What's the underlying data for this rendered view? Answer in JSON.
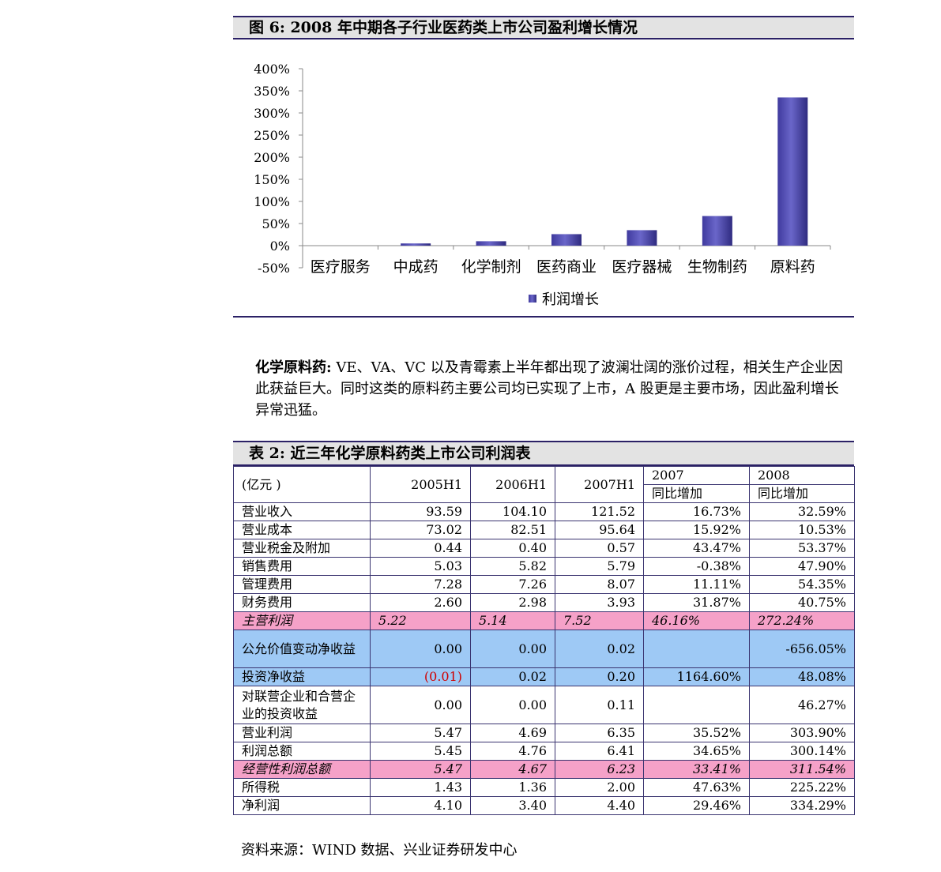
{
  "figure": {
    "title": "图 6:  2008 年中期各子行业医药类上市公司盈利增长情况"
  },
  "chart_data": {
    "type": "bar",
    "categories": [
      "医疗服务",
      "中成药",
      "化学制剂",
      "医药商业",
      "医疗器械",
      "生物制药",
      "原料药"
    ],
    "series": [
      {
        "name": "利润增长",
        "values": [
          0,
          5,
          10,
          26,
          35,
          67,
          335
        ]
      }
    ],
    "y_ticks": [
      "400%",
      "350%",
      "300%",
      "250%",
      "200%",
      "150%",
      "100%",
      "50%",
      "0%",
      "-50%"
    ],
    "ylim": [
      -50,
      400
    ],
    "grid": false,
    "legend": "bottom-center",
    "bar_color": "#6a66c9"
  },
  "paragraph": {
    "lead": "化学原料药:",
    "body": "VE、VA、VC 以及青霉素上半年都出现了波澜壮阔的涨价过程，相关生产企业因此获益巨大。同时这类的原料药主要公司均已实现了上市，A 股更是主要市场，因此盈利增长异常迅猛。"
  },
  "table": {
    "title": "表 2:  近三年化学原料药类上市公司利润表",
    "unit": "(亿元 )",
    "col_2005": "2005H1",
    "col_2006": "2006H1",
    "col_2007": "2007H1",
    "col_y2007": "2007",
    "col_y2008": "2008",
    "sub_yoy_2007": "同比增加",
    "sub_yoy_2008": "同比增加",
    "rows": [
      {
        "label": "营业收入",
        "v1": "93.59",
        "v2": "104.10",
        "v3": "121.52",
        "v4": "16.73%",
        "v5": "32.59%"
      },
      {
        "label": "营业成本",
        "v1": "73.02",
        "v2": "82.51",
        "v3": "95.64",
        "v4": "15.92%",
        "v5": "10.53%"
      },
      {
        "label": "营业税金及附加",
        "v1": "0.44",
        "v2": "0.40",
        "v3": "0.57",
        "v4": "43.47%",
        "v5": "53.37%"
      },
      {
        "label": "销售费用",
        "v1": "5.03",
        "v2": "5.82",
        "v3": "5.79",
        "v4": "-0.38%",
        "v5": "47.90%"
      },
      {
        "label": "管理费用",
        "v1": "7.28",
        "v2": "7.26",
        "v3": "8.07",
        "v4": "11.11%",
        "v5": "54.35%"
      },
      {
        "label": "财务费用",
        "v1": "2.60",
        "v2": "2.98",
        "v3": "3.93",
        "v4": "31.87%",
        "v5": "40.75%"
      },
      {
        "label": "主营利润",
        "v1": "5.22",
        "v2": "5.14",
        "v3": "7.52",
        "v4": "46.16%",
        "v5": "272.24%"
      },
      {
        "label": "公允价值变动净收益",
        "v1": "0.00",
        "v2": "0.00",
        "v3": "0.02",
        "v4": "",
        "v5": "-656.05%"
      },
      {
        "label": "投资净收益",
        "v1": "(0.01)",
        "v2": "0.02",
        "v3": "0.20",
        "v4": "1164.60%",
        "v5": "48.08%"
      },
      {
        "label": "对联营企业和合营企业的投资收益",
        "v1": "0.00",
        "v2": "0.00",
        "v3": "0.11",
        "v4": "",
        "v5": "46.27%"
      },
      {
        "label": "营业利润",
        "v1": "5.47",
        "v2": "4.69",
        "v3": "6.35",
        "v4": "35.52%",
        "v5": "303.90%"
      },
      {
        "label": "利润总额",
        "v1": "5.45",
        "v2": "4.76",
        "v3": "6.41",
        "v4": "34.65%",
        "v5": "300.14%"
      },
      {
        "label": "经营性利润总额",
        "v1": "5.47",
        "v2": "4.67",
        "v3": "6.23",
        "v4": "33.41%",
        "v5": "311.54%"
      },
      {
        "label": "所得税",
        "v1": "1.43",
        "v2": "1.36",
        "v3": "2.00",
        "v4": "47.63%",
        "v5": "225.22%"
      },
      {
        "label": "净利润",
        "v1": "4.10",
        "v2": "3.40",
        "v3": "4.40",
        "v4": "29.46%",
        "v5": "334.29%"
      }
    ]
  },
  "source": "资料来源：WIND 数据、兴业证券研发中心"
}
